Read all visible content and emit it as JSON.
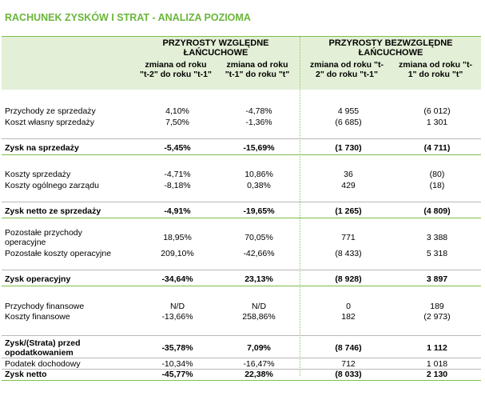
{
  "title": "RACHUNEK ZYSKÓW I STRAT - ANALIZA POZIOMA",
  "header": {
    "group1": [
      "PRZYROSTY WZGLĘDNE",
      "ŁAŃCUCHOWE"
    ],
    "group2": [
      "PRZYROSTY BEZWZGLĘDNE",
      "ŁAŃCUCHOWE"
    ],
    "sub": [
      [
        "zmiana od roku",
        "\"t-2\" do roku \"t-1\""
      ],
      [
        "zmiana od roku",
        "\"t-1\" do roku \"t\""
      ],
      [
        "zmiana od roku \"t-",
        "2\" do roku \"t-1\""
      ],
      [
        "zmiana od roku \"t-",
        "1\" do roku \"t\""
      ]
    ]
  },
  "rows": [
    {
      "label": "Przychody ze sprzedaży",
      "v": [
        "4,10%",
        "-4,78%",
        "4 955",
        "(6 012)"
      ],
      "bold": false
    },
    {
      "label": "Koszt własny sprzedaży",
      "v": [
        "7,50%",
        "-1,36%",
        "(6 685)",
        "1 301"
      ],
      "bold": false
    },
    {
      "label": "Zysk na sprzedaży",
      "v": [
        "-5,45%",
        "-15,69%",
        "(1 730)",
        "(4 711)"
      ],
      "bold": true
    },
    {
      "label": "Koszty sprzedaży",
      "v": [
        "-4,71%",
        "10,86%",
        "36",
        "(80)"
      ],
      "bold": false
    },
    {
      "label": "Koszty ogólnego zarządu",
      "v": [
        "-8,18%",
        "0,38%",
        "429",
        "(18)"
      ],
      "bold": false
    },
    {
      "label": "Zysk netto ze sprzedaży",
      "v": [
        "-4,91%",
        "-19,65%",
        "(1 265)",
        "(4 809)"
      ],
      "bold": true
    },
    {
      "label": [
        "Pozostałe przychody",
        "operacyjne"
      ],
      "v": [
        "18,95%",
        "70,05%",
        "771",
        "3 388"
      ],
      "bold": false
    },
    {
      "label": "Pozostałe koszty operacyjne",
      "v": [
        "209,10%",
        "-42,66%",
        "(8 433)",
        "5 318"
      ],
      "bold": false
    },
    {
      "label": "Zysk operacyjny",
      "v": [
        "-34,64%",
        "23,13%",
        "(8 928)",
        "3 897"
      ],
      "bold": true
    },
    {
      "label": "Przychody finansowe",
      "v": [
        "N/D",
        "N/D",
        "0",
        "189"
      ],
      "bold": false
    },
    {
      "label": "Koszty finansowe",
      "v": [
        "-13,66%",
        "258,86%",
        "182",
        "(2 973)"
      ],
      "bold": false
    },
    {
      "label": [
        "Zysk/(Strata) przed",
        "opodatkowaniem"
      ],
      "v": [
        "-35,78%",
        "7,09%",
        "(8 746)",
        "1 112"
      ],
      "bold": true
    },
    {
      "label": "Podatek dochodowy",
      "v": [
        "-10,34%",
        "-16,47%",
        "712",
        "1 018"
      ],
      "bold": false
    },
    {
      "label": "Zysk netto",
      "v": [
        "-45,77%",
        "22,38%",
        "(8 033)",
        "2 130"
      ],
      "bold": true
    }
  ]
}
